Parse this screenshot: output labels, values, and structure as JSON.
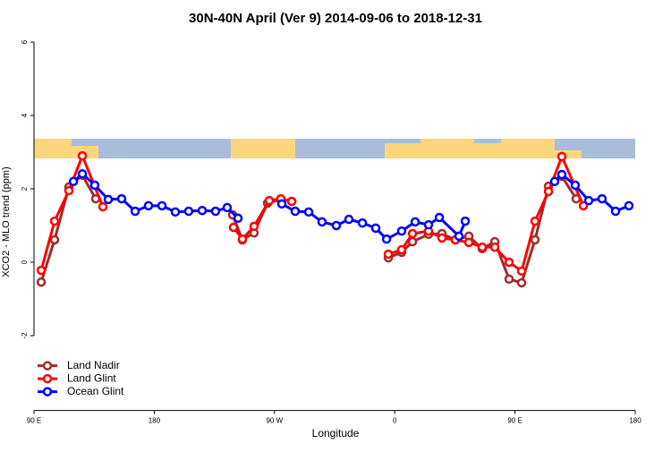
{
  "chart_data": {
    "type": "line",
    "title": "30N-40N April (Ver 9)   2014-09-06 to 2018-12-31",
    "x_label": "Longitude",
    "y_label": "XCO2 - MLO trend (ppm)",
    "xlim": [
      90,
      540
    ],
    "xticks": [
      {
        "value": 90,
        "label": "90 E"
      },
      180,
      {
        "value": 270,
        "label": "90 W"
      },
      {
        "value": 360,
        "label": "0"
      },
      {
        "value": 450,
        "label": "90 E"
      },
      {
        "value": 540,
        "label": "180"
      }
    ],
    "ylim": [
      -4.04,
      6.24
    ],
    "yticks": [
      -2,
      0,
      2,
      4,
      6
    ],
    "legend": "bottom-left",
    "series": [
      {
        "name": "Land Nadir",
        "color": "#a52a2a",
        "x": [
          95.4,
          105.4,
          116.1,
          126.2,
          136.2,
          null,
          238.7,
          246.0,
          254.7,
          264.8,
          274.8,
          282.9,
          null,
          355.2,
          365.2,
          373.3,
          385.3,
          395.4,
          405.4,
          415.5,
          425.5,
          434.9,
          445.6,
          455.0,
          465.0,
          475.1,
          485.1,
          495.8
        ],
        "values": [
          -0.54,
          0.61,
          2.05,
          2.37,
          1.73,
          null,
          1.29,
          0.61,
          0.8,
          1.61,
          1.71,
          1.66,
          null,
          0.12,
          0.27,
          0.56,
          0.76,
          0.78,
          0.61,
          0.71,
          0.37,
          0.56,
          -0.46,
          -0.56,
          0.61,
          2.07,
          2.34,
          1.73
        ]
      },
      {
        "name": "Land Glint",
        "color": "#ff0000",
        "x": [
          95.4,
          105.4,
          116.1,
          126.2,
          141.6,
          null,
          239.3,
          246.0,
          254.7,
          266.1,
          274.8,
          282.9,
          null,
          355.2,
          365.2,
          373.3,
          385.3,
          395.4,
          405.4,
          415.5,
          425.5,
          434.9,
          445.6,
          455.0,
          465.0,
          475.1,
          485.1,
          501.2
        ],
        "values": [
          -0.22,
          1.12,
          1.95,
          2.9,
          1.51,
          null,
          0.95,
          0.63,
          0.98,
          1.68,
          1.73,
          1.66,
          null,
          0.22,
          0.34,
          0.78,
          0.85,
          0.66,
          0.61,
          0.54,
          0.41,
          0.41,
          0.0,
          -0.24,
          1.12,
          1.93,
          2.88,
          1.54
        ]
      },
      {
        "name": "Ocean Glint",
        "color": "#0000ff",
        "x": [
          119.5,
          126.2,
          135.5,
          145.6,
          155.6,
          165.7,
          175.7,
          185.8,
          195.8,
          205.8,
          215.9,
          225.9,
          234.6,
          242.7,
          null,
          275.5,
          285.5,
          295.6,
          305.6,
          316.3,
          325.7,
          335.8,
          345.8,
          353.9,
          365.2,
          375.3,
          385.3,
          393.4,
          408.1,
          412.8,
          null,
          479.7,
          485.1,
          495.1,
          505.2,
          515.2,
          525.3,
          535.3
        ],
        "values": [
          2.2,
          2.41,
          2.1,
          1.71,
          1.73,
          1.39,
          1.54,
          1.54,
          1.37,
          1.39,
          1.41,
          1.39,
          1.49,
          1.2,
          null,
          1.59,
          1.39,
          1.37,
          1.1,
          1.0,
          1.17,
          1.07,
          0.93,
          0.63,
          0.85,
          1.1,
          1.02,
          1.22,
          0.71,
          1.12,
          null,
          2.2,
          2.39,
          2.1,
          1.68,
          1.73,
          1.39,
          1.54
        ]
      }
    ]
  }
}
